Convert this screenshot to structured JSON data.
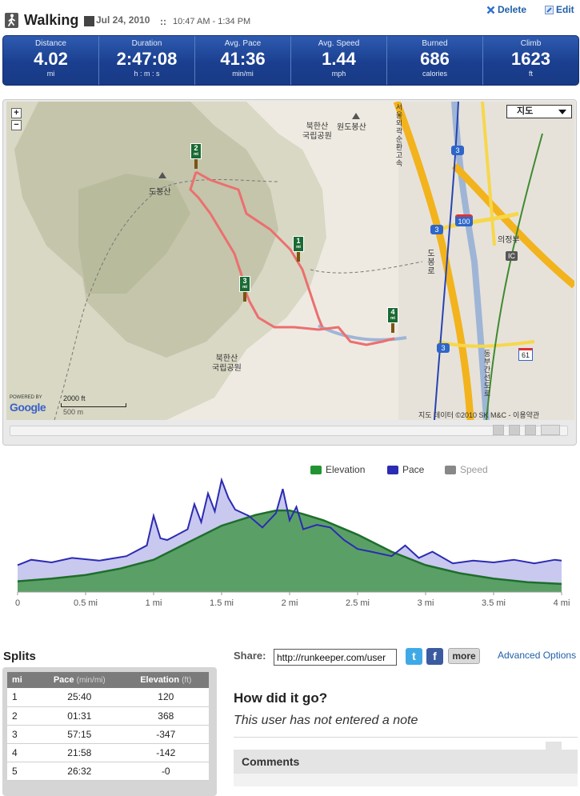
{
  "header": {
    "activity": "Walking",
    "date": "Jul 24, 2010",
    "separator": "::",
    "time_range": "10:47 AM - 1:34 PM",
    "delete_label": "Delete",
    "edit_label": "Edit",
    "walker_icon": "walking-person-icon"
  },
  "stats": [
    {
      "label": "Distance",
      "value": "4.02",
      "unit": "mi"
    },
    {
      "label": "Duration",
      "value": "2:47:08",
      "unit": "h : m : s"
    },
    {
      "label": "Avg. Pace",
      "value": "41:36",
      "unit": "min/mi"
    },
    {
      "label": "Avg. Speed",
      "value": "1.44",
      "unit": "mph"
    },
    {
      "label": "Burned",
      "value": "686",
      "unit": "calories"
    },
    {
      "label": "Climb",
      "value": "1623",
      "unit": "ft"
    }
  ],
  "map": {
    "map_type": "지도",
    "zoom_in": "+",
    "zoom_out": "−",
    "labels": {
      "bukhansan_top": "북한산\n국립공원",
      "wondobong": "원도봉산",
      "dobongsan": "도봉산",
      "bukhansan_bottom": "북한산\n국립공원",
      "uijeongbu": "의정부",
      "dobongro": "도봉로",
      "highway": "동부간선도로",
      "expressway": "서울외곽순환고속",
      "ic": "IC",
      "route_3a": "3",
      "route_3b": "3",
      "route_3c": "3",
      "route_100": "100",
      "route_61": "61"
    },
    "mile_markers": [
      "2",
      "1",
      "3",
      "4"
    ],
    "mile_unit": "mi",
    "powered_by": "POWERED BY",
    "google": "Google",
    "scale_ft": "2000 ft",
    "scale_m": "500 m",
    "copyright": "지도 데이터 ©2010 SK M&C - 이용약관",
    "route_color": "#ec6f6f"
  },
  "chart_data": {
    "type": "area",
    "legend": [
      "Elevation",
      "Pace",
      "Speed"
    ],
    "legend_colors": [
      "#219431",
      "#2b2bb3",
      "#888888"
    ],
    "x_ticks": [
      "0",
      "0.5 mi",
      "1 mi",
      "1.5 mi",
      "2 mi",
      "2.5 mi",
      "3 mi",
      "3.5 mi",
      "4 mi"
    ],
    "xlim": [
      0,
      4
    ],
    "series": [
      {
        "name": "Elevation",
        "x": [
          0,
          0.25,
          0.5,
          0.75,
          1.0,
          1.25,
          1.5,
          1.75,
          1.9,
          2.0,
          2.1,
          2.25,
          2.5,
          2.75,
          3.0,
          3.25,
          3.5,
          3.75,
          4.0
        ],
        "y": [
          0.12,
          0.15,
          0.19,
          0.26,
          0.36,
          0.55,
          0.74,
          0.86,
          0.91,
          0.91,
          0.87,
          0.8,
          0.64,
          0.45,
          0.3,
          0.21,
          0.15,
          0.11,
          0.09
        ]
      },
      {
        "name": "Pace",
        "x": [
          0,
          0.1,
          0.25,
          0.4,
          0.6,
          0.8,
          0.95,
          1.0,
          1.05,
          1.1,
          1.15,
          1.25,
          1.3,
          1.35,
          1.4,
          1.45,
          1.5,
          1.55,
          1.6,
          1.7,
          1.8,
          1.9,
          1.95,
          2.0,
          2.05,
          2.1,
          2.2,
          2.3,
          2.4,
          2.5,
          2.6,
          2.75,
          2.85,
          2.95,
          3.05,
          3.2,
          3.35,
          3.5,
          3.65,
          3.8,
          3.95,
          4.0
        ],
        "y": [
          0.3,
          0.36,
          0.33,
          0.38,
          0.35,
          0.4,
          0.52,
          0.85,
          0.6,
          0.58,
          0.62,
          0.7,
          0.98,
          0.78,
          1.1,
          0.9,
          1.25,
          1.05,
          0.92,
          0.85,
          0.72,
          0.88,
          1.15,
          0.8,
          0.95,
          0.7,
          0.75,
          0.72,
          0.58,
          0.48,
          0.45,
          0.4,
          0.52,
          0.38,
          0.45,
          0.32,
          0.35,
          0.33,
          0.36,
          0.32,
          0.36,
          0.35
        ]
      }
    ]
  },
  "splits": {
    "title": "Splits",
    "headers": {
      "mi": "mi",
      "pace": "Pace",
      "pace_unit": "(min/mi)",
      "elev": "Elevation",
      "elev_unit": "(ft)"
    },
    "rows": [
      {
        "mi": "1",
        "pace": "25:40",
        "elev": "120"
      },
      {
        "mi": "2",
        "pace": "01:31",
        "elev": "368"
      },
      {
        "mi": "3",
        "pace": "57:15",
        "elev": "-347"
      },
      {
        "mi": "4",
        "pace": "21:58",
        "elev": "-142"
      },
      {
        "mi": "5",
        "pace": "26:32",
        "elev": "-0"
      }
    ]
  },
  "share": {
    "label": "Share:",
    "url": "http://runkeeper.com/user",
    "twitter": "t",
    "facebook": "f",
    "more": "more",
    "advanced": "Advanced Options"
  },
  "note": {
    "title": "How did it go?",
    "text": "This user has not entered a note"
  },
  "comments": {
    "title": "Comments"
  }
}
